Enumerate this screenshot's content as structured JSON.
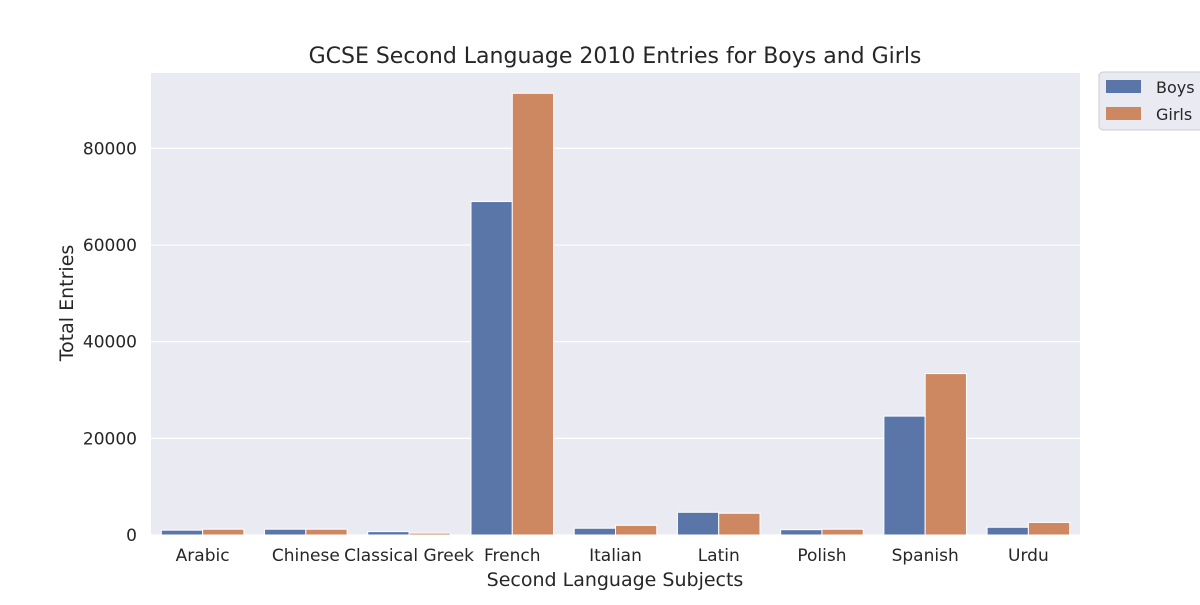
{
  "chart_data": {
    "type": "bar",
    "title": "GCSE Second Language 2010 Entries for Boys and Girls",
    "xlabel": "Second Language Subjects",
    "ylabel": "Total Entries",
    "categories": [
      "Arabic",
      "Chinese",
      "Classical Greek",
      "French",
      "Italian",
      "Latin",
      "Polish",
      "Spanish",
      "Urdu"
    ],
    "series": [
      {
        "name": "Boys",
        "color": "#5a76a8",
        "values": [
          1000,
          1200,
          700,
          69000,
          1400,
          4700,
          1100,
          24600,
          1600
        ]
      },
      {
        "name": "Girls",
        "color": "#cd8761",
        "values": [
          1200,
          1200,
          400,
          91400,
          2000,
          4500,
          1200,
          33400,
          2600
        ]
      }
    ],
    "ylim": [
      0,
      95600
    ],
    "yticks": [
      0,
      20000,
      40000,
      60000,
      80000
    ],
    "ytick_labels": [
      "0",
      "20000",
      "40000",
      "60000",
      "80000"
    ],
    "grid": true,
    "legend_position": "outside top-right",
    "background_color": "#eaeaf2",
    "grid_color": "#ffffff"
  }
}
